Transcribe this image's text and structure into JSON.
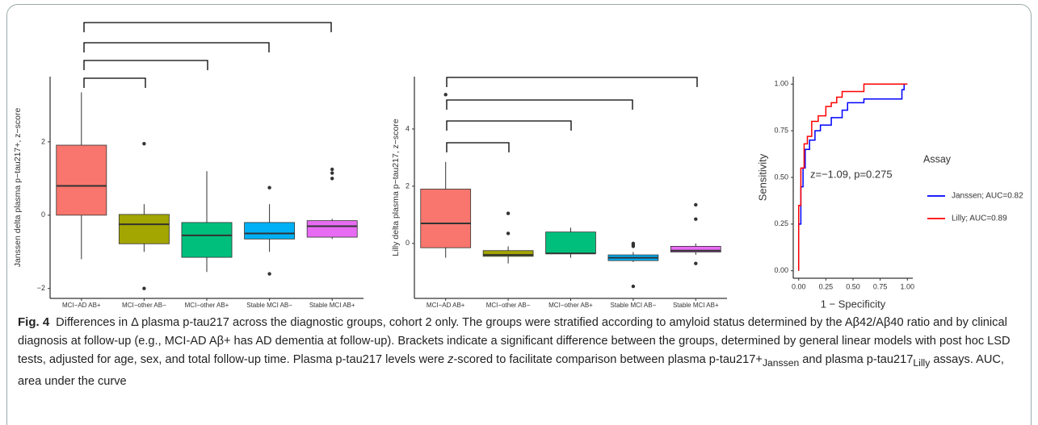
{
  "chart_data": [
    {
      "type": "box",
      "ylabel": "Janssen delta plasma p−tau217+, z−score",
      "categories": [
        "MCI−AD AB+",
        "MCI−other AB−",
        "MCI−other AB+",
        "Stable MCI AB−",
        "Stable MCI AB+"
      ],
      "colors": [
        "#F8766D",
        "#A3A500",
        "#00BF7D",
        "#00B0F6",
        "#E76BF3"
      ],
      "boxes": [
        {
          "min": -1.2,
          "q1": 0,
          "median": 0.8,
          "q3": 1.91,
          "max": 3.35,
          "outliers": []
        },
        {
          "min": -1.0,
          "q1": -0.78,
          "median": -0.25,
          "q3": 0.02,
          "max": 0.3,
          "outliers": [
            1.95,
            -2.0
          ]
        },
        {
          "min": -1.55,
          "q1": -1.15,
          "median": -0.55,
          "q3": -0.2,
          "max": 1.2,
          "outliers": []
        },
        {
          "min": -1.0,
          "q1": -0.65,
          "median": -0.5,
          "q3": -0.2,
          "max": 0.3,
          "outliers": [
            0.75,
            -1.6
          ]
        },
        {
          "min": -0.65,
          "q1": -0.6,
          "median": -0.3,
          "q3": -0.15,
          "max": -0.1,
          "outliers": [
            1.0,
            1.15,
            1.25
          ]
        }
      ],
      "ylim": [
        -2.27,
        3.78
      ],
      "yticks": [
        {
          "value": -2,
          "label": "−2"
        },
        0,
        2
      ]
    },
    {
      "type": "box",
      "ylabel": "Lilly delta plasma p−tau217, z−score",
      "categories": [
        "MCI−AD AB+",
        "MCI−other AB−",
        "MCI−other AB+",
        "Stable MCI AB−",
        "Stable MCI AB+"
      ],
      "colors": [
        "#F8766D",
        "#A3A500",
        "#00BF7D",
        "#00B0F6",
        "#E76BF3"
      ],
      "boxes": [
        {
          "min": -0.5,
          "q1": -0.15,
          "median": 0.7,
          "q3": 1.9,
          "max": 2.85,
          "outliers": [
            5.2
          ]
        },
        {
          "min": -0.7,
          "q1": -0.45,
          "median": -0.4,
          "q3": -0.25,
          "max": -0.1,
          "outliers": [
            1.05,
            0.35
          ]
        },
        {
          "min": -0.5,
          "q1": -0.35,
          "median": -0.35,
          "q3": 0.4,
          "max": 0.55,
          "outliers": []
        },
        {
          "min": -0.65,
          "q1": -0.6,
          "median": -0.5,
          "q3": -0.4,
          "max": -0.3,
          "outliers": [
            0.0,
            -0.05,
            -0.1,
            -1.5
          ]
        },
        {
          "min": -0.4,
          "q1": -0.3,
          "median": -0.25,
          "q3": -0.1,
          "max": 0.0,
          "outliers": [
            1.35,
            0.85,
            -0.7
          ]
        }
      ],
      "ylim": [
        -1.92,
        5.83
      ],
      "yticks": [
        0,
        2,
        4
      ]
    },
    {
      "type": "roc",
      "xlabel": "1 − Specificity",
      "ylabel": "Sensitivity",
      "annotation": "z=−1.09, p=0.275",
      "legend_title": "Assay",
      "series": [
        {
          "name": "Janssen; AUC=0.82",
          "color": "#0000FF",
          "x": [
            0,
            0,
            0.02,
            0.02,
            0.04,
            0.04,
            0.06,
            0.06,
            0.1,
            0.1,
            0.15,
            0.15,
            0.2,
            0.2,
            0.3,
            0.3,
            0.4,
            0.4,
            0.45,
            0.45,
            0.6,
            0.6,
            0.95,
            0.95,
            0.97,
            0.97,
            1
          ],
          "values": [
            0,
            0.25,
            0.25,
            0.45,
            0.45,
            0.55,
            0.55,
            0.65,
            0.65,
            0.7,
            0.7,
            0.75,
            0.75,
            0.78,
            0.78,
            0.82,
            0.82,
            0.86,
            0.86,
            0.9,
            0.9,
            0.92,
            0.92,
            0.97,
            0.97,
            1,
            1
          ]
        },
        {
          "name": "Lilly; AUC=0.89",
          "color": "#FF0000",
          "x": [
            0,
            0,
            0.02,
            0.02,
            0.05,
            0.05,
            0.08,
            0.08,
            0.12,
            0.12,
            0.18,
            0.18,
            0.25,
            0.25,
            0.3,
            0.3,
            0.35,
            0.35,
            0.4,
            0.4,
            0.6,
            0.6,
            1
          ],
          "values": [
            0,
            0.35,
            0.35,
            0.55,
            0.55,
            0.68,
            0.68,
            0.72,
            0.72,
            0.8,
            0.8,
            0.83,
            0.83,
            0.88,
            0.88,
            0.9,
            0.9,
            0.93,
            0.93,
            0.96,
            0.96,
            1,
            1
          ]
        }
      ],
      "xlim": [
        -0.05,
        1.05
      ],
      "ylim": [
        -0.04,
        1.04
      ],
      "xticks": [
        {
          "value": 0,
          "label": "0.00"
        },
        {
          "value": 0.25,
          "label": "0.25"
        },
        {
          "value": 0.5,
          "label": "0.50"
        },
        {
          "value": 0.75,
          "label": "0.75"
        },
        {
          "value": 1,
          "label": "1.00"
        }
      ],
      "yticks": [
        {
          "value": 0,
          "label": "0.00"
        },
        {
          "value": 0.25,
          "label": "0.25"
        },
        {
          "value": 0.5,
          "label": "0.50"
        },
        {
          "value": 0.75,
          "label": "0.75"
        },
        {
          "value": 1,
          "label": "1.00"
        }
      ]
    }
  ],
  "caption": {
    "label": "Fig. 4",
    "text_1": "Differences in Δ plasma p-tau217 across the diagnostic groups, cohort 2 only. The groups were stratified according to amyloid status determined by the Aβ42/Aβ40 ratio and by clinical diagnosis at follow-up (e.g., MCI-AD Aβ+ has AD dementia at follow-up). Brackets indicate a significant difference between the groups, determined by general linear models with post hoc LSD tests, adjusted for age, sex, and total follow-up time. Plasma p-tau217 levels were ",
    "italic": "z",
    "text_2": "-scored to facilitate comparison between plasma p-tau217+",
    "sub_1": "Janssen",
    "text_3": " and plasma p-tau217",
    "sub_2": "Lilly",
    "text_4": " assays. AUC, area under the curve"
  }
}
